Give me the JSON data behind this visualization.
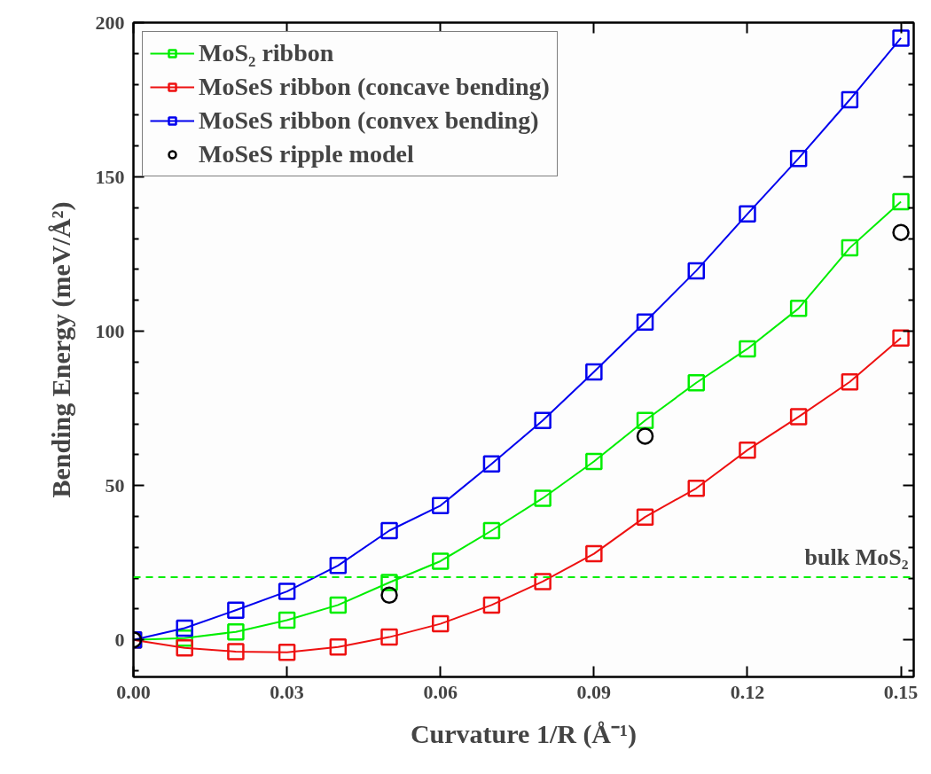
{
  "chart_data": {
    "type": "line",
    "xlabel": "Curvature 1/R (Å⁻¹)",
    "ylabel": "Bending Energy (meV/Å²)",
    "x": [
      0,
      0.01,
      0.02,
      0.03,
      0.04,
      0.05,
      0.06,
      0.07,
      0.08,
      0.09,
      0.1,
      0.11,
      0.12,
      0.13,
      0.14,
      0.15
    ],
    "series": [
      {
        "name": "MoS₂ ribbon",
        "color": "#00ee00",
        "marker": "square",
        "values": [
          0,
          0.6,
          2.6,
          6.4,
          11.3,
          18.6,
          25.5,
          35.4,
          45.9,
          57.8,
          71.1,
          83.3,
          94.3,
          107.4,
          127,
          142
        ]
      },
      {
        "name": "MoSeS ribbon (concave bending)",
        "color": "#ee1111",
        "marker": "square",
        "values": [
          0,
          -2.6,
          -3.8,
          -4,
          -2.3,
          0.9,
          5.2,
          11.3,
          18.9,
          27.9,
          39.8,
          49.1,
          61.5,
          72.3,
          83.6,
          97.8
        ]
      },
      {
        "name": "MoSeS ribbon (convex bending)",
        "color": "#0000ee",
        "marker": "square",
        "values": [
          0,
          3.8,
          9.6,
          15.7,
          24.1,
          35.4,
          43.5,
          57,
          71.1,
          86.8,
          103,
          119.6,
          138,
          156,
          175,
          195
        ]
      },
      {
        "name": "MoSeS ripple model",
        "color": "#000000",
        "type": "scatter",
        "marker": "circle",
        "x": [
          0,
          0.05,
          0.1,
          0.15
        ],
        "values": [
          0,
          14.5,
          66,
          132
        ]
      }
    ],
    "ref_lines": [
      {
        "axis": "y",
        "value": 20.3,
        "label": "bulk MoS₂",
        "color": "#00ee00",
        "line_style": "dashed"
      }
    ],
    "xlim": [
      0,
      0.1525
    ],
    "ylim": [
      -12,
      200
    ],
    "xticks": [
      {
        "value": 0,
        "label": "0.00"
      },
      {
        "value": 0.03,
        "label": "0.03"
      },
      {
        "value": 0.06,
        "label": "0.06"
      },
      {
        "value": 0.09,
        "label": "0.09"
      },
      {
        "value": 0.12,
        "label": "0.12"
      },
      {
        "value": 0.15,
        "label": "0.15"
      }
    ],
    "yticks": [
      {
        "value": -10,
        "label": null
      },
      0,
      {
        "value": 10,
        "label": null
      },
      {
        "value": 20,
        "label": null
      },
      {
        "value": 30,
        "label": null
      },
      {
        "value": 40,
        "label": null
      },
      50,
      {
        "value": 60,
        "label": null
      },
      {
        "value": 70,
        "label": null
      },
      {
        "value": 80,
        "label": null
      },
      {
        "value": 90,
        "label": null
      },
      100,
      {
        "value": 110,
        "label": null
      },
      {
        "value": 120,
        "label": null
      },
      {
        "value": 130,
        "label": null
      },
      {
        "value": 140,
        "label": null
      },
      150,
      {
        "value": 160,
        "label": null
      },
      {
        "value": 170,
        "label": null
      },
      {
        "value": 180,
        "label": null
      },
      {
        "value": 190,
        "label": null
      },
      200
    ],
    "grid": false,
    "legend": "top left"
  }
}
